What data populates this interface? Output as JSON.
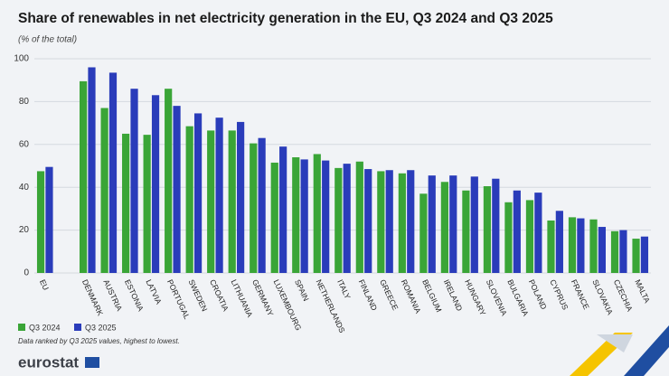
{
  "chart_data": {
    "type": "bar",
    "title": "Share of renewables in net electricity generation in the EU, Q3 2024 and Q3 2025",
    "subtitle": "(% of the total)",
    "note": "Data ranked by Q3 2025 values, highest to lowest.",
    "categories": [
      "EU",
      null,
      "DENMARK",
      "AUSTRIA",
      "ESTONIA",
      "LATVIA",
      "PORTUGAL",
      "SWEDEN",
      "CROATIA",
      "LITHUANIA",
      "GERMANY",
      "LUXEMBOURG",
      "SPAIN",
      "NETHERLANDS",
      "ITALY",
      "FINLAND",
      "GREECE",
      "ROMANIA",
      "BELGIUM",
      "IRELAND",
      "HUNGARY",
      "SLOVENIA",
      "BULGARIA",
      "POLAND",
      "CYPRUS",
      "FRANCE",
      "SLOVAKIA",
      "CZECHIA",
      "MALTA"
    ],
    "series": [
      {
        "name": "Q3 2024",
        "color": "#3aa537",
        "values": [
          47.5,
          null,
          89.5,
          77,
          65,
          64.5,
          86,
          68.5,
          66.5,
          66.5,
          60.5,
          51.5,
          54,
          55.5,
          49,
          52,
          47.5,
          46.5,
          37,
          42.5,
          38.5,
          40.5,
          33,
          34,
          24.5,
          26,
          25,
          19.5,
          16
        ]
      },
      {
        "name": "Q3 2025",
        "color": "#2a3cba",
        "values": [
          49.5,
          null,
          96,
          93.5,
          86,
          83,
          78,
          74.5,
          72.5,
          70.5,
          63,
          59,
          53,
          52.5,
          51,
          48.5,
          48,
          48,
          45.5,
          45.5,
          45,
          44,
          38.5,
          37.5,
          29,
          25.5,
          21.5,
          20,
          17
        ]
      }
    ],
    "ylim": [
      0,
      100
    ],
    "yticks": [
      0,
      20,
      40,
      60,
      80,
      100
    ],
    "grid": true
  },
  "footer": {
    "logo": "eurostat"
  }
}
